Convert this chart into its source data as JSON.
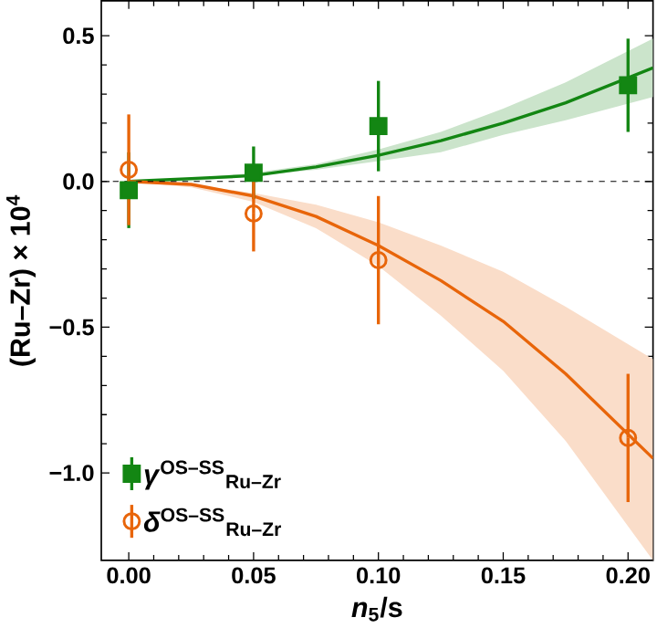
{
  "chart_data": {
    "type": "scatter",
    "xlabel": "*n*$_{5}$/s",
    "ylabel": "(Ru–Zr) × 10$^{4}$",
    "xlim": [
      -0.011,
      0.21
    ],
    "ylim": [
      -1.3,
      0.62
    ],
    "xticks": [
      {
        "value": 0,
        "label": "0.00"
      },
      {
        "value": 0.05,
        "label": "0.05"
      },
      {
        "value": 0.1,
        "label": "0.10"
      },
      {
        "value": 0.15,
        "label": "0.15"
      },
      {
        "value": 0.2,
        "label": "0.20"
      }
    ],
    "yticks": [
      {
        "value": -1,
        "label": "−1.0"
      },
      {
        "value": -0.5,
        "label": "−0.5"
      },
      {
        "value": 0,
        "label": "0.0"
      },
      {
        "value": 0.5,
        "label": "0.5"
      }
    ],
    "legend": "bottom left",
    "grid": false,
    "ref_lines": [
      {
        "axis": "y",
        "value": 0,
        "color": "#000000",
        "line_style": "dashed"
      }
    ],
    "series": [
      {
        "type": "line",
        "color": "#138613",
        "x": [
          0,
          0.025,
          0.05,
          0.075,
          0.1,
          0.125,
          0.15,
          0.175,
          0.21
        ],
        "values": [
          0,
          0.01,
          0.02,
          0.05,
          0.09,
          0.14,
          0.2,
          0.27,
          0.39
        ],
        "lower": [
          0,
          0,
          0.02,
          0.04,
          0.07,
          0.1,
          0.16,
          0.21,
          0.29
        ],
        "upper": [
          0,
          0.01,
          0.03,
          0.06,
          0.11,
          0.17,
          0.25,
          0.34,
          0.49
        ],
        "marker": "none"
      },
      {
        "type": "line",
        "color": "#e8650a",
        "x": [
          0,
          0.025,
          0.05,
          0.075,
          0.1,
          0.125,
          0.15,
          0.175,
          0.21
        ],
        "values": [
          0,
          -0.01,
          -0.05,
          -0.12,
          -0.22,
          -0.34,
          -0.48,
          -0.66,
          -0.95
        ],
        "lower": [
          0,
          -0.02,
          -0.07,
          -0.16,
          -0.29,
          -0.46,
          -0.65,
          -0.89,
          -1.3
        ],
        "upper": [
          0,
          -0.01,
          -0.04,
          -0.08,
          -0.14,
          -0.22,
          -0.31,
          -0.43,
          -0.61
        ],
        "marker": "none"
      },
      {
        "name": "*γ*$^{OS–SS}$$_{Ru–Zr}$",
        "color": "#138613",
        "marker": "square",
        "x": [
          0,
          0.05,
          0.1,
          0.2
        ],
        "values": [
          -0.03,
          0.03,
          0.19,
          0.33
        ],
        "errors": [
          0.13,
          0.09,
          0.155,
          0.16
        ]
      },
      {
        "name": "*δ*$^{OS–SS}$$_{Ru–Zr}$",
        "color": "#e8650a",
        "marker": "circle",
        "x": [
          0,
          0.05,
          0.1,
          0.2
        ],
        "values": [
          0.04,
          -0.11,
          -0.27,
          -0.88
        ],
        "errors": [
          0.19,
          0.13,
          0.22,
          0.22
        ]
      }
    ]
  }
}
